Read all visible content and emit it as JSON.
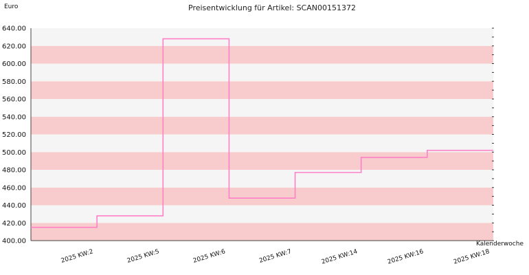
{
  "chart_data": {
    "type": "line",
    "title": "Preisentwicklung für Artikel: SCAN00151372",
    "ylabel": "Euro",
    "xlabel": "Kalenderwoche",
    "ylim": [
      400,
      640
    ],
    "yticks": [
      "400.00",
      "420.00",
      "440.00",
      "460.00",
      "480.00",
      "500.00",
      "520.00",
      "540.00",
      "560.00",
      "580.00",
      "600.00",
      "620.00",
      "640.00"
    ],
    "categories": [
      "2025 KW:2",
      "2025 KW:5",
      "2025 KW:6",
      "2025 KW:7",
      "2025 KW:14",
      "2025 KW:16",
      "2025 KW:18"
    ],
    "line_style": "step",
    "grid": "alternating horizontal bands",
    "colors": {
      "line": "#ff7fc8",
      "band_a": "#f8cccc",
      "band_b": "#f5f5f5"
    },
    "series": [
      {
        "values": [
          415,
          428,
          628,
          448,
          477,
          494,
          502
        ]
      }
    ]
  }
}
